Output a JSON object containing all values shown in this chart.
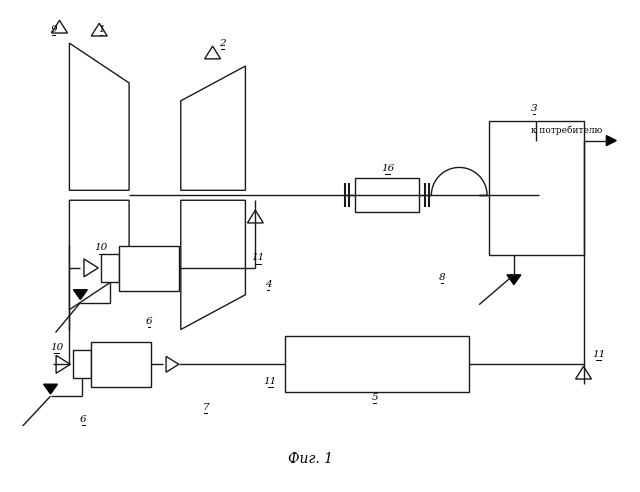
{
  "bg_color": "#ffffff",
  "line_color": "#1a1a1a",
  "fig_caption": "Фиг. 1",
  "label_to_consumer": "к потребителю",
  "lw": 1.0
}
